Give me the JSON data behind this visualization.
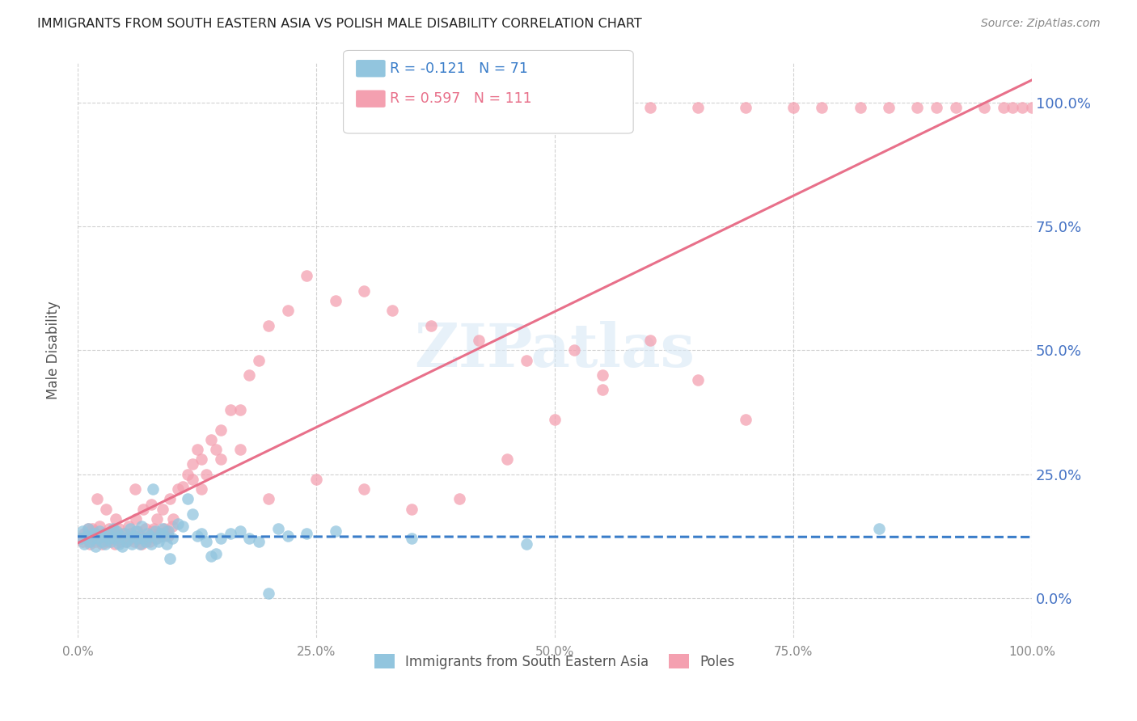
{
  "title": "IMMIGRANTS FROM SOUTH EASTERN ASIA VS POLISH MALE DISABILITY CORRELATION CHART",
  "source": "Source: ZipAtlas.com",
  "ylabel": "Male Disability",
  "legend_r1": "R = -0.121",
  "legend_n1": "N = 71",
  "legend_r2": "R = 0.597",
  "legend_n2": "N = 111",
  "series1_label": "Immigrants from South Eastern Asia",
  "series2_label": "Poles",
  "color1": "#92C5DE",
  "color2": "#F4A0B0",
  "trendline1_color": "#3A7DC9",
  "trendline2_color": "#E8708A",
  "watermark_color": "#D8E8F5",
  "background_color": "#FFFFFF",
  "scatter1_x": [
    0.3,
    0.5,
    0.7,
    0.9,
    1.1,
    1.3,
    1.5,
    1.7,
    1.9,
    2.1,
    2.3,
    2.5,
    2.7,
    2.9,
    3.1,
    3.3,
    3.5,
    3.7,
    3.9,
    4.1,
    4.3,
    4.5,
    4.7,
    4.9,
    5.1,
    5.3,
    5.5,
    5.7,
    5.9,
    6.1,
    6.3,
    6.5,
    6.7,
    6.9,
    7.1,
    7.3,
    7.5,
    7.7,
    7.9,
    8.1,
    8.3,
    8.5,
    8.7,
    8.9,
    9.1,
    9.3,
    9.5,
    9.7,
    9.9,
    10.5,
    11.0,
    11.5,
    12.0,
    12.5,
    13.0,
    13.5,
    14.0,
    14.5,
    15.0,
    16.0,
    17.0,
    18.0,
    19.0,
    20.0,
    21.0,
    22.0,
    24.0,
    27.0,
    35.0,
    47.0,
    84.0
  ],
  "scatter1_y": [
    12.0,
    13.5,
    11.0,
    12.5,
    14.0,
    11.5,
    12.0,
    13.0,
    10.5,
    12.0,
    13.5,
    11.5,
    12.5,
    11.0,
    13.0,
    12.0,
    11.5,
    14.0,
    12.0,
    13.5,
    11.0,
    12.5,
    10.5,
    13.0,
    11.5,
    12.0,
    14.0,
    11.0,
    12.5,
    13.5,
    12.0,
    11.0,
    14.5,
    12.0,
    11.5,
    13.0,
    12.5,
    11.0,
    22.0,
    13.5,
    12.0,
    11.5,
    13.0,
    14.0,
    12.5,
    11.0,
    13.5,
    8.0,
    12.0,
    15.0,
    14.5,
    20.0,
    17.0,
    12.5,
    13.0,
    11.5,
    8.5,
    9.0,
    12.0,
    13.0,
    13.5,
    12.0,
    11.5,
    1.0,
    14.0,
    12.5,
    13.0,
    13.5,
    12.0,
    11.0,
    14.0
  ],
  "scatter2_x": [
    0.3,
    0.5,
    0.7,
    0.9,
    1.1,
    1.3,
    1.5,
    1.7,
    1.9,
    2.1,
    2.3,
    2.5,
    2.7,
    2.9,
    3.1,
    3.3,
    3.5,
    3.7,
    3.9,
    4.1,
    4.3,
    4.5,
    4.7,
    4.9,
    5.1,
    5.3,
    5.5,
    5.7,
    5.9,
    6.1,
    6.3,
    6.5,
    6.7,
    6.9,
    7.1,
    7.3,
    7.5,
    7.7,
    7.9,
    8.1,
    8.3,
    8.5,
    8.7,
    8.9,
    9.1,
    9.3,
    9.5,
    9.7,
    9.9,
    10.5,
    11.0,
    11.5,
    12.0,
    12.5,
    13.0,
    13.5,
    14.0,
    14.5,
    15.0,
    16.0,
    17.0,
    18.0,
    19.0,
    20.0,
    22.0,
    24.0,
    27.0,
    30.0,
    33.0,
    37.0,
    42.0,
    47.0,
    52.0,
    55.0,
    60.0,
    65.0,
    70.0,
    75.0,
    78.0,
    82.0,
    85.0,
    88.0,
    90.0,
    92.0,
    95.0,
    97.0,
    98.0,
    99.0,
    100.0,
    60.0,
    65.0,
    70.0,
    55.0,
    50.0,
    45.0,
    40.0,
    35.0,
    30.0,
    25.0,
    20.0,
    17.0,
    15.0,
    13.0,
    12.0,
    10.0,
    8.0,
    6.0,
    4.0,
    3.0,
    2.0,
    1.5
  ],
  "scatter2_y": [
    12.0,
    11.5,
    13.0,
    12.5,
    14.0,
    11.0,
    12.5,
    13.5,
    11.5,
    12.0,
    14.5,
    11.0,
    13.0,
    12.5,
    11.5,
    14.0,
    12.0,
    13.5,
    11.0,
    12.5,
    14.0,
    11.5,
    13.0,
    12.0,
    11.5,
    14.5,
    13.0,
    12.0,
    11.5,
    16.0,
    13.5,
    12.5,
    11.0,
    18.0,
    14.0,
    12.0,
    11.5,
    19.0,
    13.5,
    12.0,
    16.0,
    13.0,
    12.5,
    18.0,
    14.0,
    13.5,
    12.5,
    20.0,
    14.5,
    22.0,
    22.5,
    25.0,
    27.0,
    30.0,
    28.0,
    25.0,
    32.0,
    30.0,
    34.0,
    38.0,
    38.0,
    45.0,
    48.0,
    55.0,
    58.0,
    65.0,
    60.0,
    62.0,
    58.0,
    55.0,
    52.0,
    48.0,
    50.0,
    45.0,
    99.0,
    99.0,
    99.0,
    99.0,
    99.0,
    99.0,
    99.0,
    99.0,
    99.0,
    99.0,
    99.0,
    99.0,
    99.0,
    99.0,
    99.0,
    52.0,
    44.0,
    36.0,
    42.0,
    36.0,
    28.0,
    20.0,
    18.0,
    22.0,
    24.0,
    20.0,
    30.0,
    28.0,
    22.0,
    24.0,
    16.0,
    14.0,
    22.0,
    16.0,
    18.0,
    20.0,
    14.0
  ],
  "xlim": [
    0,
    100
  ],
  "ylim": [
    -8,
    108
  ],
  "xticks": [
    0,
    25,
    50,
    75,
    100
  ],
  "xtick_labels": [
    "0.0%",
    "25.0%",
    "50.0%",
    "75.0%",
    "100.0%"
  ],
  "yticks": [
    0,
    25,
    50,
    75,
    100
  ],
  "ytick_labels": [
    "0.0%",
    "25.0%",
    "50.0%",
    "75.0%",
    "100.0%"
  ]
}
